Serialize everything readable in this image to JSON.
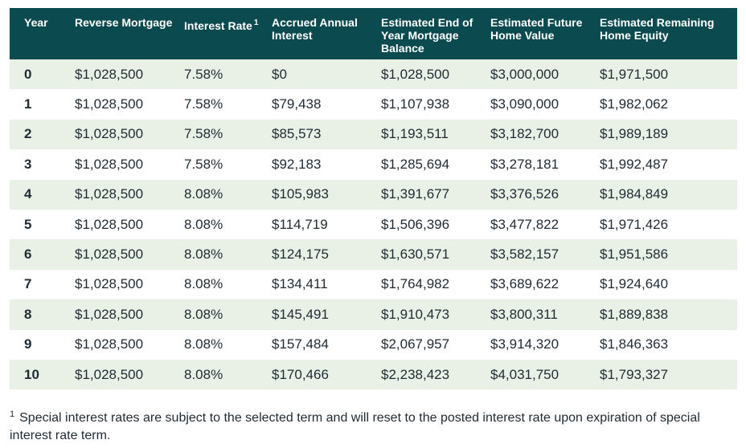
{
  "header": {
    "year": "Year",
    "reverse_mortgage": "Reverse Mortgage",
    "interest_rate": "Interest Rate",
    "interest_rate_sup": "1",
    "accrued_interest": "Accrued Annual Interest",
    "end_balance": "Estimated End of Year Mortgage Balance",
    "future_home_value": "Estimated Future Home Value",
    "remaining_equity": "Estimated Remaining Home Equity"
  },
  "rows": [
    {
      "year": "0",
      "reverse_mortgage": "$1,028,500",
      "interest_rate": "7.58%",
      "accrued_interest": "$0",
      "end_balance": "$1,028,500",
      "future_home_value": "$3,000,000",
      "remaining_equity": "$1,971,500"
    },
    {
      "year": "1",
      "reverse_mortgage": "$1,028,500",
      "interest_rate": "7.58%",
      "accrued_interest": "$79,438",
      "end_balance": "$1,107,938",
      "future_home_value": "$3,090,000",
      "remaining_equity": "$1,982,062"
    },
    {
      "year": "2",
      "reverse_mortgage": "$1,028,500",
      "interest_rate": "7.58%",
      "accrued_interest": "$85,573",
      "end_balance": "$1,193,511",
      "future_home_value": "$3,182,700",
      "remaining_equity": "$1,989,189"
    },
    {
      "year": "3",
      "reverse_mortgage": "$1,028,500",
      "interest_rate": "7.58%",
      "accrued_interest": "$92,183",
      "end_balance": "$1,285,694",
      "future_home_value": "$3,278,181",
      "remaining_equity": "$1,992,487"
    },
    {
      "year": "4",
      "reverse_mortgage": "$1,028,500",
      "interest_rate": "8.08%",
      "accrued_interest": "$105,983",
      "end_balance": "$1,391,677",
      "future_home_value": "$3,376,526",
      "remaining_equity": "$1,984,849"
    },
    {
      "year": "5",
      "reverse_mortgage": "$1,028,500",
      "interest_rate": "8.08%",
      "accrued_interest": "$114,719",
      "end_balance": "$1,506,396",
      "future_home_value": "$3,477,822",
      "remaining_equity": "$1,971,426"
    },
    {
      "year": "6",
      "reverse_mortgage": "$1,028,500",
      "interest_rate": "8.08%",
      "accrued_interest": "$124,175",
      "end_balance": "$1,630,571",
      "future_home_value": "$3,582,157",
      "remaining_equity": "$1,951,586"
    },
    {
      "year": "7",
      "reverse_mortgage": "$1,028,500",
      "interest_rate": "8.08%",
      "accrued_interest": "$134,411",
      "end_balance": "$1,764,982",
      "future_home_value": "$3,689,622",
      "remaining_equity": "$1,924,640"
    },
    {
      "year": "8",
      "reverse_mortgage": "$1,028,500",
      "interest_rate": "8.08%",
      "accrued_interest": "$145,491",
      "end_balance": "$1,910,473",
      "future_home_value": "$3,800,311",
      "remaining_equity": "$1,889,838"
    },
    {
      "year": "9",
      "reverse_mortgage": "$1,028,500",
      "interest_rate": "8.08%",
      "accrued_interest": "$157,484",
      "end_balance": "$2,067,957",
      "future_home_value": "$3,914,320",
      "remaining_equity": "$1,846,363"
    },
    {
      "year": "10",
      "reverse_mortgage": "$1,028,500",
      "interest_rate": "8.08%",
      "accrued_interest": "$170,466",
      "end_balance": "$2,238,423",
      "future_home_value": "$4,031,750",
      "remaining_equity": "$1,793,327"
    }
  ],
  "footnote": {
    "marker": "1",
    "text": "Special interest rates are subject to the selected term and will reset to the posted interest rate upon expiration of special interest rate term."
  },
  "colors": {
    "header_bg": "#0b4a4f",
    "row_alt_bg": "#e9f1e6",
    "text": "#1f2a33"
  }
}
